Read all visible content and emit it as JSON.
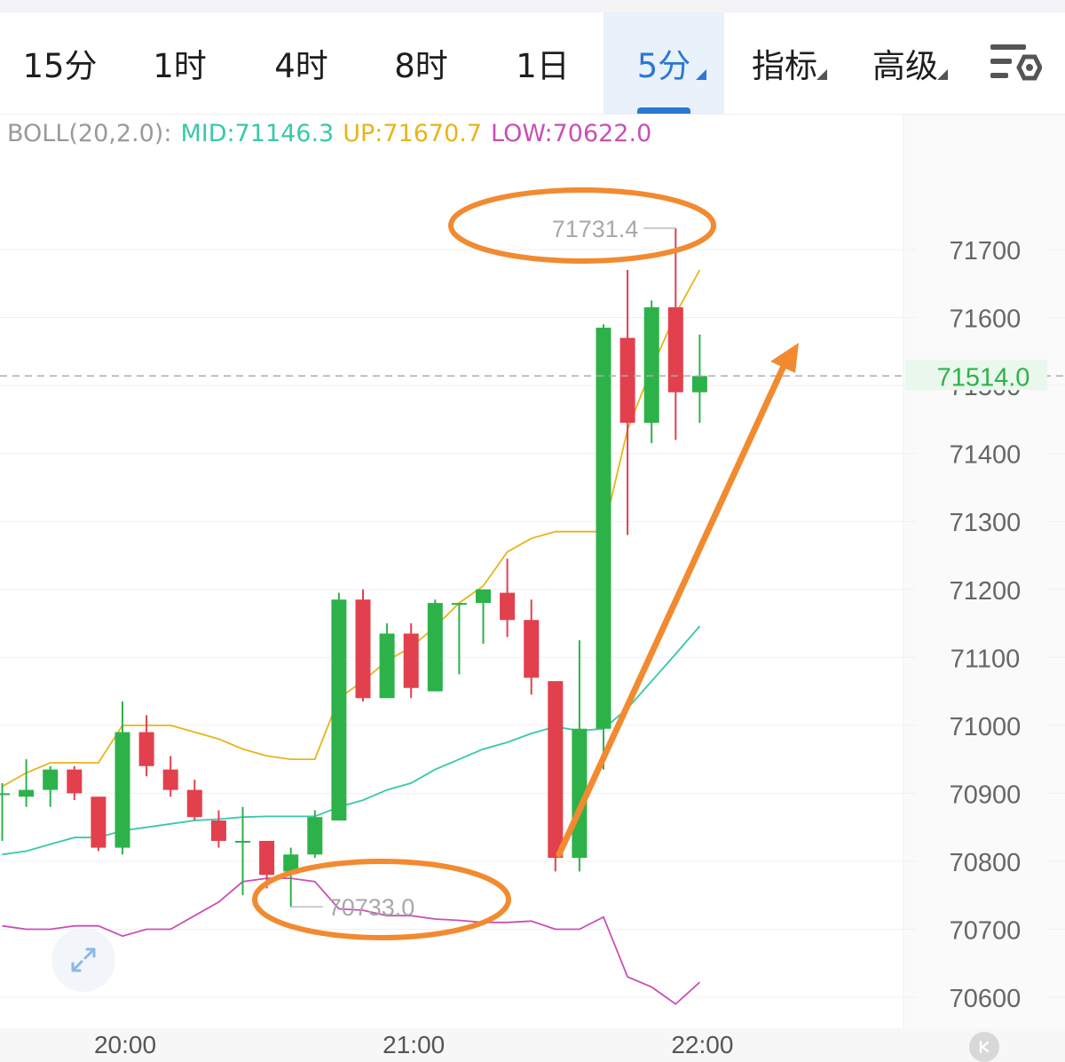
{
  "tabs": [
    {
      "label": "15分",
      "active": false,
      "dropdown": false
    },
    {
      "label": "1时",
      "active": false,
      "dropdown": false
    },
    {
      "label": "4时",
      "active": false,
      "dropdown": false
    },
    {
      "label": "8时",
      "active": false,
      "dropdown": false
    },
    {
      "label": "1日",
      "active": false,
      "dropdown": false
    },
    {
      "label": "5分",
      "active": true,
      "dropdown": true
    },
    {
      "label": "指标",
      "active": false,
      "dropdown": true
    },
    {
      "label": "高级",
      "active": false,
      "dropdown": true
    }
  ],
  "settings_icon": "chart-settings-icon",
  "boll": {
    "label": "BOLL(20,2.0):",
    "mid": "MID:71146.3",
    "up": "UP:71670.7",
    "low": "LOW:70622.0"
  },
  "colors": {
    "up_candle": "#2db24a",
    "down_candle": "#e2404d",
    "mid_line": "#36c9a9",
    "up_line": "#e8b41a",
    "low_line": "#c94fb5",
    "annotation": "#f28a30",
    "accent": "#2a78d3",
    "current_price": "#2db24a"
  },
  "chart_data": {
    "type": "candlestick",
    "ylim": [
      70560,
      71860
    ],
    "y_ticks": [
      "71700",
      "71600",
      "71500",
      "71400",
      "71300",
      "71200",
      "71100",
      "71000",
      "70900",
      "70800",
      "70700",
      "70600"
    ],
    "x_ticks": [
      "20:00",
      "21:00",
      "22:00"
    ],
    "current_price": "71514.0",
    "current_price_value": 71514.0,
    "high_label": "71731.4",
    "high_value": 71731.4,
    "low_label": "70733.0",
    "low_value": 70733.0,
    "candles": [
      {
        "time": "19:35",
        "o": 70900,
        "h": 70915,
        "l": 70830,
        "c": 70900
      },
      {
        "time": "19:40",
        "o": 70895,
        "h": 70950,
        "l": 70880,
        "c": 70905
      },
      {
        "time": "19:45",
        "o": 70905,
        "h": 70940,
        "l": 70880,
        "c": 70935
      },
      {
        "time": "19:50",
        "o": 70935,
        "h": 70940,
        "l": 70890,
        "c": 70900
      },
      {
        "time": "19:55",
        "o": 70895,
        "h": 70895,
        "l": 70815,
        "c": 70820
      },
      {
        "time": "20:00",
        "o": 70820,
        "h": 71035,
        "l": 70810,
        "c": 70990
      },
      {
        "time": "20:05",
        "o": 70990,
        "h": 71015,
        "l": 70925,
        "c": 70940
      },
      {
        "time": "20:10",
        "o": 70935,
        "h": 70955,
        "l": 70895,
        "c": 70905
      },
      {
        "time": "20:15",
        "o": 70905,
        "h": 70920,
        "l": 70860,
        "c": 70865
      },
      {
        "time": "20:20",
        "o": 70860,
        "h": 70875,
        "l": 70820,
        "c": 70830
      },
      {
        "time": "20:25",
        "o": 70830,
        "h": 70880,
        "l": 70750,
        "c": 70830
      },
      {
        "time": "20:30",
        "o": 70830,
        "h": 70830,
        "l": 70760,
        "c": 70780
      },
      {
        "time": "20:35",
        "o": 70785,
        "h": 70820,
        "l": 70733,
        "c": 70810
      },
      {
        "time": "20:40",
        "o": 70810,
        "h": 70875,
        "l": 70805,
        "c": 70865
      },
      {
        "time": "20:45",
        "o": 70860,
        "h": 71195,
        "l": 70860,
        "c": 71185
      },
      {
        "time": "20:50",
        "o": 71185,
        "h": 71200,
        "l": 71035,
        "c": 71040
      },
      {
        "time": "20:55",
        "o": 71040,
        "h": 71150,
        "l": 71040,
        "c": 71135
      },
      {
        "time": "21:00",
        "o": 71135,
        "h": 71150,
        "l": 71040,
        "c": 71055
      },
      {
        "time": "21:05",
        "o": 71050,
        "h": 71185,
        "l": 71050,
        "c": 71180
      },
      {
        "time": "21:10",
        "o": 71180,
        "h": 71180,
        "l": 71075,
        "c": 71180
      },
      {
        "time": "21:15",
        "o": 71180,
        "h": 71200,
        "l": 71120,
        "c": 71200
      },
      {
        "time": "21:20",
        "o": 71195,
        "h": 71245,
        "l": 71130,
        "c": 71155
      },
      {
        "time": "21:25",
        "o": 71155,
        "h": 71185,
        "l": 71045,
        "c": 71070
      },
      {
        "time": "21:30",
        "o": 71065,
        "h": 71065,
        "l": 70785,
        "c": 70805
      },
      {
        "time": "21:35",
        "o": 70805,
        "h": 71125,
        "l": 70785,
        "c": 70995
      },
      {
        "time": "21:40",
        "o": 70995,
        "h": 71590,
        "l": 70935,
        "c": 71585
      },
      {
        "time": "21:45",
        "o": 71570,
        "h": 71670,
        "l": 71280,
        "c": 71445
      },
      {
        "time": "21:50",
        "o": 71445,
        "h": 71625,
        "l": 71415,
        "c": 71615
      },
      {
        "time": "21:55",
        "o": 71615,
        "h": 71731.4,
        "l": 71420,
        "c": 71490
      },
      {
        "time": "22:00",
        "o": 71490,
        "h": 71575,
        "l": 71445,
        "c": 71514
      }
    ],
    "boll_up": [
      70910,
      70930,
      70945,
      70945,
      70945,
      71000,
      71000,
      71000,
      70990,
      70980,
      70965,
      70955,
      70950,
      70950,
      71040,
      71065,
      71095,
      71115,
      71145,
      71180,
      71205,
      71255,
      71275,
      71285,
      71285,
      71285,
      71435,
      71525,
      71605,
      71670
    ],
    "boll_mid": [
      70810,
      70815,
      70825,
      70835,
      70835,
      70845,
      70850,
      70855,
      70860,
      70862,
      70865,
      70866,
      70866,
      70866,
      70880,
      70890,
      70905,
      70915,
      70935,
      70950,
      70965,
      70975,
      70988,
      70998,
      70992,
      70995,
      71025,
      71065,
      71105,
      71146
    ],
    "boll_low": [
      70705,
      70700,
      70700,
      70705,
      70705,
      70690,
      70700,
      70700,
      70720,
      70740,
      70770,
      70775,
      70775,
      70770,
      70730,
      70728,
      70720,
      70720,
      70715,
      70713,
      70710,
      70710,
      70712,
      70700,
      70700,
      70718,
      70630,
      70615,
      70590,
      70622
    ]
  }
}
